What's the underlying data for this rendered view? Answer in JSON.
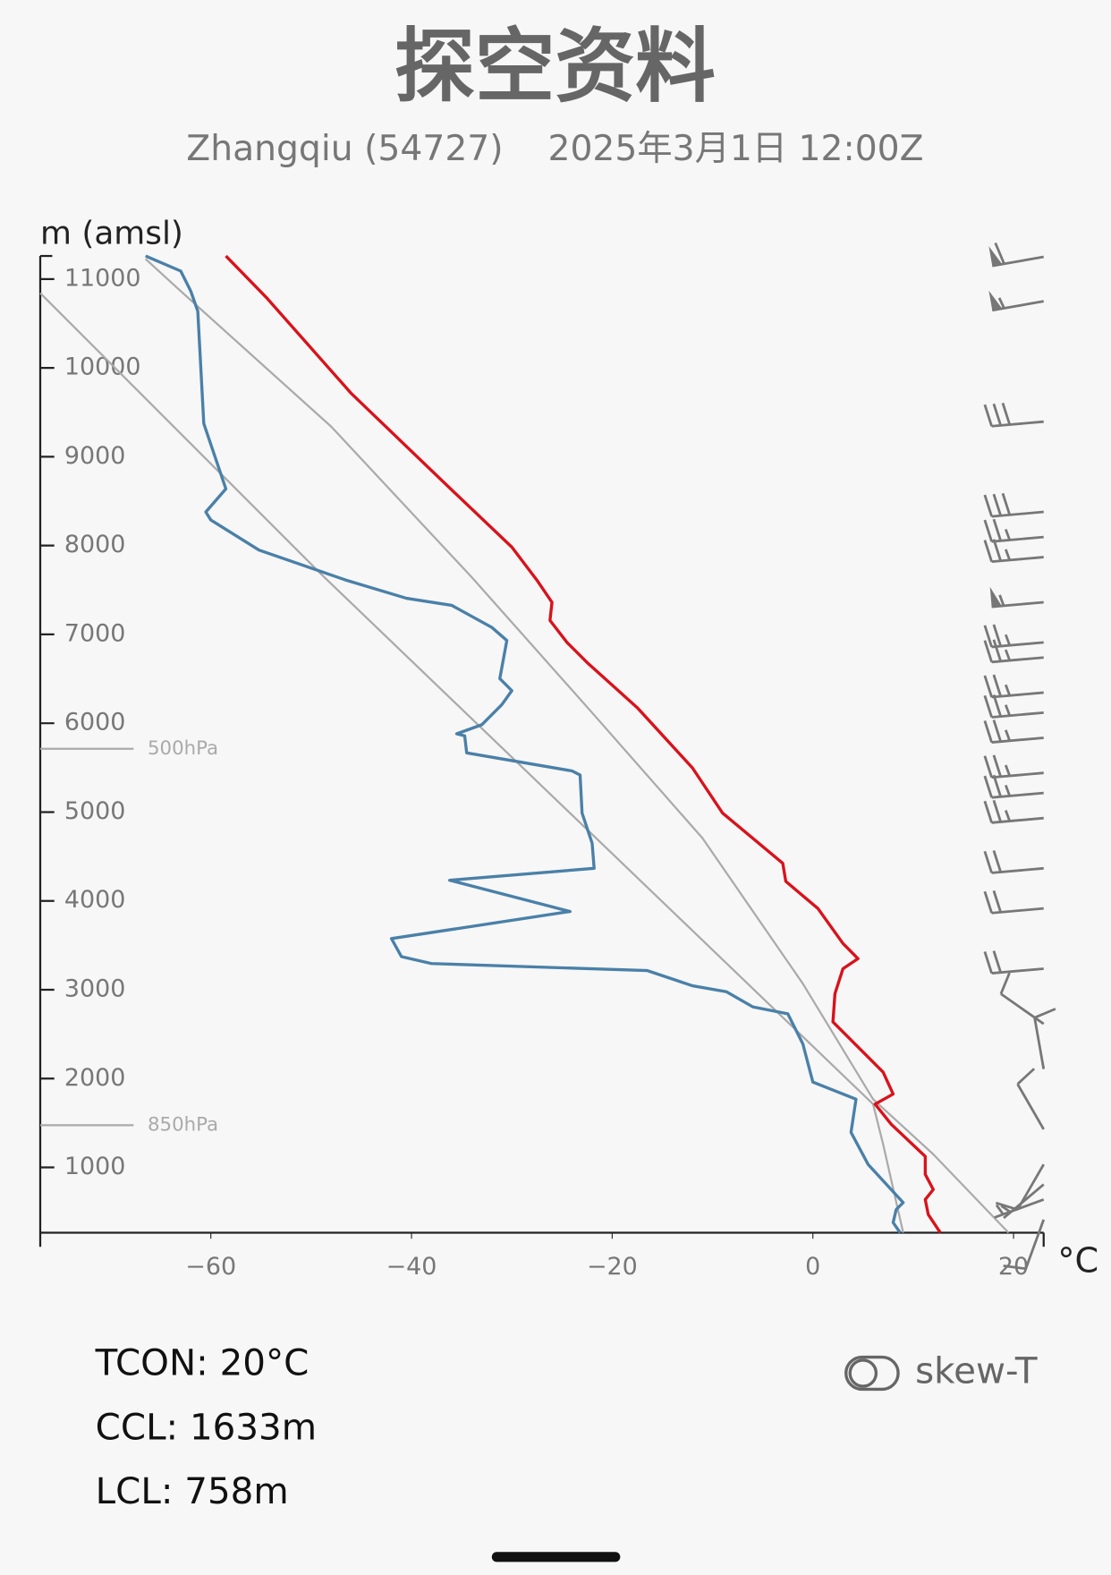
{
  "chart_data": {
    "type": "line",
    "title": "探空资料",
    "subtitle": "Zhangqiu (54727)    2025年3月1日 12:00Z",
    "ylabel": "m (amsl)",
    "xlabel": "°C",
    "xlim": [
      -77,
      23
    ],
    "ylim": [
      265,
      11260
    ],
    "xticks": [
      {
        "value": -60,
        "label": "−60"
      },
      {
        "value": -40,
        "label": "−40"
      },
      {
        "value": -20,
        "label": "−20"
      },
      0,
      20
    ],
    "yticks": [
      1000,
      2000,
      3000,
      4000,
      5000,
      6000,
      7000,
      8000,
      9000,
      10000,
      11000
    ],
    "levels": [
      {
        "label": "500hPa",
        "y": 5712
      },
      {
        "label": "850hPa",
        "y": 1475
      }
    ],
    "series": [
      {
        "color": "#aaaaaa",
        "x": [
          -77,
          -49,
          6,
          7,
          9
        ],
        "values": [
          10842,
          7678,
          1712,
          1260,
          265
        ]
      },
      {
        "color": "#aaaaaa",
        "x": [
          19.5,
          12,
          6,
          -1,
          -11,
          -22,
          -34,
          -48,
          -63,
          -66.5
        ],
        "values": [
          265,
          1147,
          1768,
          3068,
          4706,
          6119,
          7644,
          9339,
          10864,
          11226
        ]
      },
      {
        "color": "#d9121b",
        "x": [
          12.7,
          11.5,
          11.2,
          12,
          11.2,
          11.2,
          7.8,
          6.2,
          8,
          7,
          2,
          2.2,
          3,
          4.5,
          3,
          0.5,
          -2.7,
          -3,
          -9,
          -12,
          -17.5,
          -22.5,
          -24.5,
          -26.2,
          -26,
          -27.5,
          -30,
          -36,
          -46,
          -54.5,
          -58.5
        ],
        "values": [
          265,
          469,
          638,
          751,
          921,
          1124,
          1486,
          1712,
          1825,
          2073,
          2638,
          2955,
          3237,
          3350,
          3520,
          3915,
          4220,
          4424,
          4989,
          5497,
          6175,
          6684,
          6910,
          7158,
          7362,
          7610,
          7983,
          8627,
          9712,
          10797,
          11260
        ]
      },
      {
        "color": "#4a80a8",
        "x": [
          8.7,
          8,
          8.3,
          9,
          5.5,
          3.8,
          4.3,
          0,
          -1,
          -2.5,
          -6,
          -8.6,
          -12,
          -16.5,
          -38,
          -41,
          -42,
          -24.2,
          -36.2,
          -21.8,
          -22,
          -23,
          -23.2,
          -24,
          -34.5,
          -34.7,
          -35.5,
          -33,
          -31,
          -30,
          -31.2,
          -30.5,
          -32,
          -36,
          -40.5,
          -46.5,
          -55.2,
          -60,
          -60.5,
          -58.5,
          -60.7,
          -61.3,
          -62,
          -63,
          -66.5
        ],
        "values": [
          265,
          379,
          525,
          604,
          1034,
          1395,
          1768,
          1960,
          2390,
          2729,
          2808,
          2977,
          3045,
          3215,
          3294,
          3373,
          3576,
          3881,
          4232,
          4367,
          4650,
          4989,
          5418,
          5463,
          5667,
          5859,
          5881,
          5983,
          6209,
          6367,
          6503,
          6932,
          7079,
          7328,
          7407,
          7610,
          7949,
          8288,
          8379,
          8638,
          9373,
          10638,
          10864,
          11090,
          11260
        ]
      }
    ],
    "wind": {
      "heights": [
        412,
        638,
        808,
        1034,
        1429,
        2107,
        2616,
        3237,
        3915,
        4367,
        4932,
        5215,
        5441,
        5836,
        6119,
        6345,
        6740,
        6910,
        7362,
        7870,
        8096,
        8379,
        9395,
        10750,
        11250
      ],
      "speed": [
        10,
        5,
        5,
        10,
        10,
        10,
        10,
        20,
        20,
        20,
        25,
        25,
        25,
        25,
        25,
        25,
        25,
        25,
        55,
        25,
        25,
        30,
        30,
        55,
        60
      ],
      "direction": [
        200,
        250,
        230,
        210,
        330,
        350,
        305,
        265,
        265,
        265,
        265,
        265,
        265,
        265,
        265,
        265,
        265,
        265,
        265,
        265,
        265,
        265,
        265,
        260,
        260
      ]
    }
  },
  "stats": [
    "TCON: 20°C",
    "CCL: 1633m",
    "LCL: 758m"
  ],
  "toggle": "skew-T"
}
